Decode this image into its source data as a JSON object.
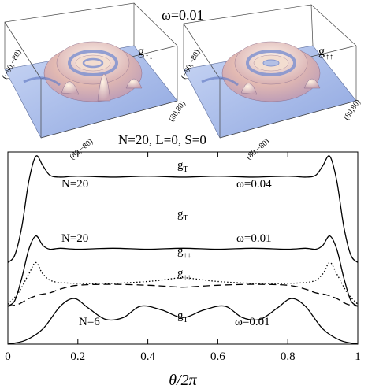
{
  "surfaces": {
    "omega_label": "ω=0.01",
    "left_panel": {
      "g_label": "g",
      "g_sub": "↑↓",
      "corner_top": "(−80,−80)",
      "corner_right": "(80,80)",
      "corner_bottom": "(80,−80)"
    },
    "right_panel": {
      "g_label": "g",
      "g_sub": "↑↑",
      "corner_top": "(−80,−80)",
      "corner_right": "(80,80)",
      "corner_bottom": "(80,−80)"
    },
    "params": "N=20, L=0, S=0"
  },
  "chart_data": {
    "type": "line",
    "xlabel": "θ/2π",
    "xlim": [
      0,
      1
    ],
    "xticks": [
      "0",
      "0.2",
      "0.4",
      "0.6",
      "0.8",
      "1"
    ],
    "annotations": [
      {
        "g": "g",
        "sub": "T",
        "n": "N=20",
        "omega": "ω=0.04"
      },
      {
        "g": "g",
        "sub": "T",
        "n": "N=20",
        "omega": "ω=0.01"
      },
      {
        "g": "g",
        "sub": "↑↓",
        "n": "",
        "omega": ""
      },
      {
        "g": "g",
        "sub": "↑↑",
        "n": "",
        "omega": ""
      },
      {
        "g": "g",
        "sub": "T",
        "n": "N=6",
        "omega": "ω=0.01"
      }
    ],
    "series": [
      {
        "style": "solid",
        "x": [
          0,
          0.02,
          0.04,
          0.06,
          0.08,
          0.1,
          0.12,
          0.15,
          0.2,
          0.3,
          0.4,
          0.5,
          0.6,
          0.7,
          0.8,
          0.85,
          0.88,
          0.9,
          0.92,
          0.94,
          0.96,
          0.98,
          1
        ],
        "y": [
          0.43,
          0.47,
          0.62,
          0.86,
          0.99,
          0.94,
          0.89,
          0.88,
          0.885,
          0.88,
          0.885,
          0.88,
          0.885,
          0.88,
          0.885,
          0.88,
          0.89,
          0.94,
          0.99,
          0.86,
          0.62,
          0.47,
          0.43
        ]
      },
      {
        "style": "solid",
        "x": [
          0,
          0.02,
          0.04,
          0.06,
          0.08,
          0.1,
          0.12,
          0.15,
          0.2,
          0.3,
          0.4,
          0.5,
          0.6,
          0.7,
          0.8,
          0.85,
          0.88,
          0.9,
          0.92,
          0.94,
          0.96,
          0.98,
          1
        ],
        "y": [
          0.2,
          0.23,
          0.35,
          0.5,
          0.57,
          0.52,
          0.5,
          0.505,
          0.5,
          0.505,
          0.5,
          0.505,
          0.5,
          0.505,
          0.5,
          0.505,
          0.5,
          0.52,
          0.57,
          0.5,
          0.35,
          0.23,
          0.2
        ]
      },
      {
        "style": "dotted",
        "x": [
          0,
          0.03,
          0.06,
          0.08,
          0.1,
          0.13,
          0.2,
          0.3,
          0.4,
          0.45,
          0.5,
          0.55,
          0.6,
          0.7,
          0.8,
          0.87,
          0.9,
          0.92,
          0.94,
          0.97,
          1
        ],
        "y": [
          0.21,
          0.27,
          0.37,
          0.43,
          0.37,
          0.33,
          0.32,
          0.32,
          0.33,
          0.34,
          0.35,
          0.34,
          0.33,
          0.32,
          0.32,
          0.33,
          0.37,
          0.43,
          0.37,
          0.27,
          0.21
        ]
      },
      {
        "style": "dashed",
        "x": [
          0,
          0.03,
          0.06,
          0.09,
          0.12,
          0.15,
          0.2,
          0.3,
          0.4,
          0.45,
          0.5,
          0.55,
          0.6,
          0.7,
          0.8,
          0.85,
          0.88,
          0.91,
          0.94,
          0.97,
          1
        ],
        "y": [
          0.2,
          0.21,
          0.24,
          0.26,
          0.27,
          0.29,
          0.31,
          0.315,
          0.31,
          0.305,
          0.3,
          0.305,
          0.31,
          0.315,
          0.31,
          0.29,
          0.27,
          0.26,
          0.24,
          0.21,
          0.2
        ]
      },
      {
        "style": "solid",
        "x": [
          0,
          0.05,
          0.1,
          0.15,
          0.19,
          0.23,
          0.28,
          0.33,
          0.38,
          0.44,
          0.5,
          0.56,
          0.62,
          0.67,
          0.72,
          0.77,
          0.81,
          0.85,
          0.9,
          0.95,
          1
        ],
        "y": [
          0.0,
          0.02,
          0.08,
          0.2,
          0.24,
          0.19,
          0.13,
          0.14,
          0.2,
          0.18,
          0.14,
          0.18,
          0.2,
          0.14,
          0.13,
          0.19,
          0.24,
          0.2,
          0.08,
          0.02,
          0.0
        ]
      }
    ]
  }
}
